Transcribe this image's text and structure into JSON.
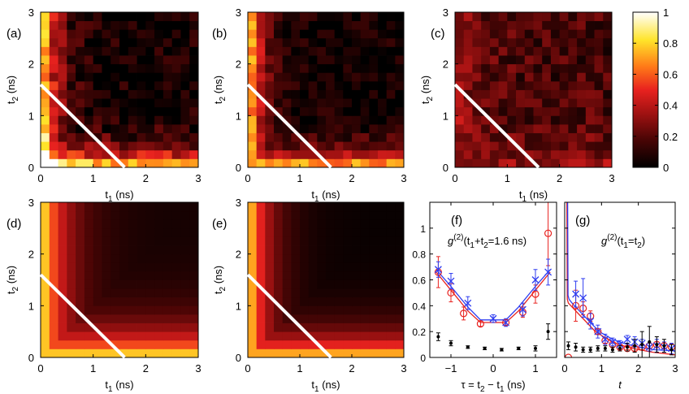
{
  "figure": "Two-photon correlation maps and cuts",
  "colors": {
    "red_series": "#e8221f",
    "blue_series": "#2f3df0",
    "black_series": "#000000",
    "diagonal_line": "#ffffff"
  },
  "colorbar": {
    "ticks": [
      "1",
      "0.8",
      "0.6",
      "0.4",
      "0.2",
      "0"
    ],
    "tick_values": [
      1,
      0.8,
      0.6,
      0.4,
      0.2,
      0
    ],
    "range": [
      0,
      1
    ]
  },
  "chart_data": [
    {
      "type": "heatmap",
      "panel": "(a)",
      "kind": "measured",
      "xlabel_main": "t",
      "xlabel_sub": "1",
      "xlabel_unit": " (ns)",
      "ylabel_main": "t",
      "ylabel_sub": "2",
      "ylabel_unit": " (ns)",
      "x_ticks": [
        "0",
        "1",
        "2",
        "3"
      ],
      "y_ticks": [
        "0",
        "1",
        "2",
        "3"
      ],
      "xlim": [
        0,
        3
      ],
      "ylim": [
        0,
        3
      ],
      "grid_bins": 18,
      "model": {
        "base": 0.03,
        "amp": 0.9,
        "tau": 0.3,
        "corner": 0.8,
        "noise": 0.13,
        "seed": 11
      },
      "line": [
        [
          0,
          1.6
        ],
        [
          1.6,
          0
        ]
      ]
    },
    {
      "type": "heatmap",
      "panel": "(b)",
      "kind": "measured",
      "xlabel_main": "t",
      "xlabel_sub": "1",
      "xlabel_unit": " (ns)",
      "ylabel_main": "t",
      "ylabel_sub": "2",
      "ylabel_unit": " (ns)",
      "x_ticks": [
        "0",
        "1",
        "2",
        "3"
      ],
      "y_ticks": [
        "0",
        "1",
        "2",
        "3"
      ],
      "xlim": [
        0,
        3
      ],
      "ylim": [
        0,
        3
      ],
      "grid_bins": 18,
      "model": {
        "base": 0.04,
        "amp": 0.85,
        "tau": 0.28,
        "corner": 0.1,
        "noise": 0.1,
        "seed": 27
      },
      "line": [
        [
          0,
          1.6
        ],
        [
          1.6,
          0
        ]
      ]
    },
    {
      "type": "heatmap",
      "panel": "(c)",
      "kind": "measured",
      "xlabel_main": "t",
      "xlabel_sub": "1",
      "xlabel_unit": " (ns)",
      "ylabel_main": "t",
      "ylabel_sub": "2",
      "ylabel_unit": " (ns)",
      "x_ticks": [
        "0",
        "1",
        "2",
        "3"
      ],
      "y_ticks": [
        "0",
        "1",
        "2",
        "3"
      ],
      "xlim": [
        0,
        3
      ],
      "ylim": [
        0,
        3
      ],
      "grid_bins": 18,
      "model": {
        "base": 0.16,
        "amp": 0.2,
        "tau": 0.5,
        "corner": 0.0,
        "noise": 0.12,
        "seed": 43
      },
      "line": [
        [
          0,
          1.6
        ],
        [
          1.6,
          0
        ]
      ]
    },
    {
      "type": "heatmap",
      "panel": "(d)",
      "kind": "theory",
      "xlabel_main": "t",
      "xlabel_sub": "1",
      "xlabel_unit": " (ns)",
      "ylabel_main": "t",
      "ylabel_sub": "2",
      "ylabel_unit": " (ns)",
      "x_ticks": [
        "0",
        "1",
        "2",
        "3"
      ],
      "y_ticks": [
        "0",
        "1",
        "2",
        "3"
      ],
      "xlim": [
        0,
        3
      ],
      "ylim": [
        0,
        3
      ],
      "grid_bins": 18,
      "model": {
        "base": 0.05,
        "amp": 0.85,
        "tau": 0.5,
        "corner": 0.0,
        "noise": 0.0,
        "seed": 0
      },
      "line": [
        [
          0,
          1.6
        ],
        [
          1.6,
          0
        ]
      ]
    },
    {
      "type": "heatmap",
      "panel": "(e)",
      "kind": "theory",
      "xlabel_main": "t",
      "xlabel_sub": "1",
      "xlabel_unit": " (ns)",
      "ylabel_main": "t",
      "ylabel_sub": "2",
      "ylabel_unit": " (ns)",
      "x_ticks": [
        "0",
        "1",
        "2",
        "3"
      ],
      "y_ticks": [
        "0",
        "1",
        "2",
        "3"
      ],
      "xlim": [
        0,
        3
      ],
      "ylim": [
        0,
        3
      ],
      "grid_bins": 18,
      "model": {
        "base": 0.02,
        "amp": 0.85,
        "tau": 0.42,
        "corner": 0.0,
        "noise": 0.0,
        "seed": 0
      },
      "line": [
        [
          0,
          1.6
        ],
        [
          1.6,
          0
        ]
      ]
    },
    {
      "type": "scatter",
      "panel": "(f)",
      "annotation_main": "g",
      "annotation_sup": "(2)",
      "annotation_rest": "(t",
      "annotation_s1": "1",
      "annotation_mid": "+t",
      "annotation_s2": "2",
      "annotation_end": "=1.6 ns)",
      "xlabel": "τ = t",
      "xlabel_s2": "2",
      "xlabel_mid": " − t",
      "xlabel_s1": "1",
      "xlabel_end": " (ns)",
      "x_ticks": [
        "−1",
        "0",
        "1"
      ],
      "x_tick_values": [
        -1,
        0,
        1
      ],
      "y_ticks": [
        "0",
        "0.2",
        "0.4",
        "0.6",
        "0.8",
        "1"
      ],
      "y_tick_values": [
        0,
        0.2,
        0.4,
        0.6,
        0.8,
        1
      ],
      "xlim": [
        -1.5,
        1.5
      ],
      "ylim": [
        0,
        1.2
      ],
      "series": [
        {
          "name": "red",
          "marker": "circle",
          "color": "#e8221f",
          "x": [
            -1.3,
            -1.0,
            -0.7,
            -0.3,
            0.3,
            0.7,
            1.0,
            1.3
          ],
          "y": [
            0.66,
            0.5,
            0.34,
            0.26,
            0.27,
            0.35,
            0.49,
            0.96
          ],
          "err": [
            0.12,
            0.07,
            0.05,
            0.02,
            0.02,
            0.04,
            0.07,
            0.25
          ]
        },
        {
          "name": "blue",
          "marker": "cross",
          "color": "#2f3df0",
          "x": [
            -1.3,
            -1.0,
            -0.6,
            0.0,
            0.3,
            0.7,
            1.0,
            1.3
          ],
          "y": [
            0.68,
            0.59,
            0.42,
            0.3,
            0.27,
            0.37,
            0.6,
            0.66
          ],
          "err": [
            0.06,
            0.06,
            0.05,
            0.03,
            0.03,
            0.05,
            0.08,
            0.1
          ]
        },
        {
          "name": "black",
          "marker": "dot",
          "color": "#000000",
          "x": [
            -1.3,
            -1.0,
            -0.6,
            -0.2,
            0.2,
            0.6,
            1.0,
            1.3
          ],
          "y": [
            0.16,
            0.11,
            0.08,
            0.07,
            0.06,
            0.07,
            0.07,
            0.2
          ],
          "err": [
            0.03,
            0.02,
            0.01,
            0.01,
            0.01,
            0.01,
            0.02,
            0.06
          ]
        }
      ],
      "fits": [
        {
          "name": "red-fit",
          "color": "#e8221f",
          "x": [
            -1.35,
            -1.0,
            -0.6,
            -0.3,
            0.3,
            0.6,
            1.0,
            1.35
          ],
          "y": [
            0.66,
            0.52,
            0.36,
            0.27,
            0.27,
            0.36,
            0.52,
            0.66
          ]
        },
        {
          "name": "blue-fit",
          "color": "#2f3df0",
          "x": [
            -1.35,
            -1.0,
            -0.6,
            -0.3,
            0.3,
            0.6,
            1.0,
            1.35
          ],
          "y": [
            0.68,
            0.55,
            0.39,
            0.29,
            0.29,
            0.39,
            0.55,
            0.68
          ]
        }
      ]
    },
    {
      "type": "scatter",
      "panel": "(g)",
      "annotation_main": "g",
      "annotation_sup": "(2)",
      "annotation_rest": "(t",
      "annotation_s1": "1",
      "annotation_mid": "=t",
      "annotation_s2": "2",
      "annotation_end": ")",
      "xlabel": "t",
      "x_ticks": [
        "0",
        "1",
        "2",
        "3"
      ],
      "x_tick_values": [
        0,
        1,
        2,
        3
      ],
      "y_ticks": [],
      "xlim": [
        0,
        3
      ],
      "ylim": [
        0,
        1.2
      ],
      "series": [
        {
          "name": "red",
          "marker": "circle",
          "color": "#e8221f",
          "x": [
            0.1,
            0.3,
            0.5,
            0.7,
            0.9,
            1.1,
            1.3,
            1.5,
            1.7,
            1.9,
            2.1,
            2.3,
            2.5,
            2.7,
            2.9
          ],
          "y": [
            0.0,
            0.4,
            0.38,
            0.32,
            0.2,
            0.13,
            0.1,
            0.08,
            0.07,
            0.07,
            0.08,
            0.09,
            0.1,
            0.09,
            0.08
          ],
          "err": [
            0.0,
            0.12,
            0.05,
            0.04,
            0.02,
            0.02,
            0.02,
            0.01,
            0.01,
            0.02,
            0.02,
            0.02,
            0.02,
            0.02,
            0.02
          ]
        },
        {
          "name": "blue",
          "marker": "cross",
          "color": "#2f3df0",
          "x": [
            0.3,
            0.5,
            0.7,
            0.9,
            1.1,
            1.3,
            1.5,
            1.7,
            1.9,
            2.1,
            2.3,
            2.5,
            2.7,
            2.9
          ],
          "y": [
            0.49,
            0.46,
            0.28,
            0.2,
            0.14,
            0.12,
            0.1,
            0.14,
            0.12,
            0.11,
            0.08,
            0.09,
            0.08,
            0.07
          ],
          "err": [
            0.1,
            0.15,
            0.06,
            0.05,
            0.04,
            0.03,
            0.03,
            0.03,
            0.04,
            0.03,
            0.03,
            0.05,
            0.04,
            0.04
          ]
        },
        {
          "name": "black",
          "marker": "dot",
          "color": "#000000",
          "x": [
            0.1,
            0.3,
            0.5,
            0.7,
            0.9,
            1.1,
            1.3,
            1.5,
            1.7,
            1.9,
            2.1,
            2.3,
            2.5,
            2.7,
            2.9
          ],
          "y": [
            0.09,
            0.08,
            0.06,
            0.06,
            0.07,
            0.07,
            0.06,
            0.07,
            0.08,
            0.09,
            0.1,
            0.12,
            0.1,
            0.09,
            0.06
          ],
          "err": [
            0.03,
            0.03,
            0.02,
            0.02,
            0.02,
            0.02,
            0.02,
            0.02,
            0.03,
            0.05,
            0.1,
            0.12,
            0.06,
            0.05,
            0.04
          ]
        }
      ],
      "fits": [
        {
          "name": "red-fit",
          "color": "#e8221f",
          "x": [
            0.06,
            0.07,
            0.1,
            0.2,
            0.4,
            0.6,
            0.8,
            1.0,
            1.3,
            1.6,
            2.0,
            2.4,
            3.0
          ],
          "y": [
            1.2,
            0.45,
            0.42,
            0.39,
            0.33,
            0.27,
            0.21,
            0.17,
            0.12,
            0.09,
            0.06,
            0.04,
            0.02
          ]
        },
        {
          "name": "blue-fit",
          "color": "#2f3df0",
          "x": [
            0.08,
            0.09,
            0.12,
            0.2,
            0.4,
            0.6,
            0.8,
            1.0,
            1.3,
            1.6,
            2.0,
            2.4,
            3.0
          ],
          "y": [
            1.2,
            0.48,
            0.45,
            0.42,
            0.36,
            0.3,
            0.24,
            0.19,
            0.14,
            0.11,
            0.08,
            0.06,
            0.05
          ]
        }
      ]
    }
  ]
}
